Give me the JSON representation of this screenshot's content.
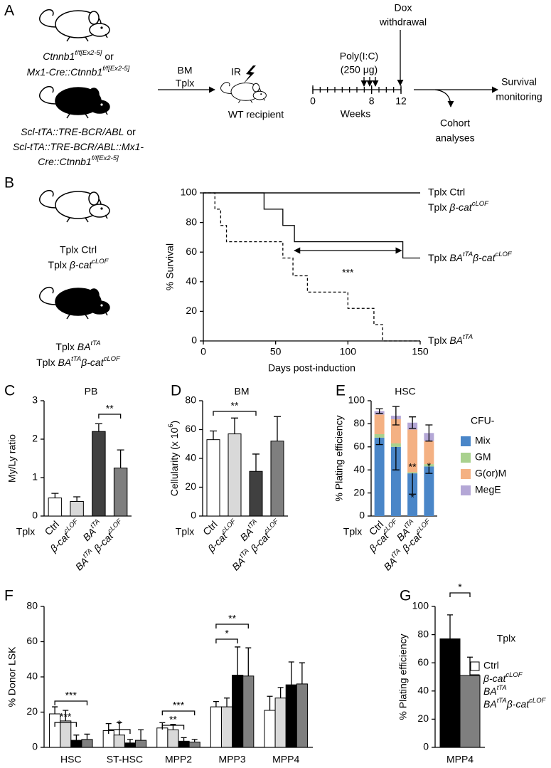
{
  "panel_a": {
    "label": "A",
    "donor_texts": [
      [
        {
          "t": "Ctnnb1",
          "it": true
        },
        {
          "t": "f/f[Ex2-5]",
          "it": true,
          "sup": true
        },
        {
          "t": " or"
        }
      ],
      [
        {
          "t": "Mx1-Cre::Ctnnb1",
          "it": true
        },
        {
          "t": "f/f[Ex2-5]",
          "it": true,
          "sup": true
        }
      ],
      [
        {
          "t": "Scl-tTA::TRE-BCR/ABL",
          "it": true
        },
        {
          "t": " or"
        }
      ],
      [
        {
          "t": "Scl-tTA::TRE-BCR/ABL::Mx1-",
          "it": true
        }
      ],
      [
        {
          "t": "Cre::Ctnnb1",
          "it": true
        },
        {
          "t": "f/f[Ex2-5]",
          "it": true,
          "sup": true
        }
      ]
    ],
    "transplant": [
      "BM",
      "Tplx"
    ],
    "irradiation": "IR",
    "recipient": "WT recipient",
    "dox": [
      "Dox",
      "withdrawal"
    ],
    "treatment": [
      "Poly(I:C)",
      "(250 μg)"
    ],
    "timeline_xlim": [
      0,
      12
    ],
    "timeline_ticks": [
      0,
      8,
      12
    ],
    "timeline_label": "Weeks",
    "outcome": [
      "Survival",
      "monitoring"
    ],
    "analyses": [
      "Cohort",
      "analyses"
    ]
  },
  "chart_data": [
    {
      "type": "line",
      "drawstyle": "steps-post",
      "label": "B",
      "ylabel": "% Survival",
      "xlabel": "Days post-induction",
      "xlim": [
        0,
        150
      ],
      "xticks": [
        0,
        50,
        100,
        150
      ],
      "ylim": [
        0,
        100
      ],
      "yticks": [
        0,
        20,
        40,
        60,
        80,
        100
      ],
      "annotation": "***",
      "mouse_labels": [
        "Tplx Ctrl",
        [
          {
            "t": "Tplx "
          },
          {
            "t": "β-cat",
            "it": true
          },
          {
            "t": "cLOF",
            "it": true,
            "sup": true
          }
        ],
        [
          {
            "t": "Tplx "
          },
          {
            "t": "BA",
            "it": true
          },
          {
            "t": "tTA",
            "it": true,
            "sup": true
          }
        ],
        [
          {
            "t": "Tplx "
          },
          {
            "t": "BA",
            "it": true
          },
          {
            "t": "tTA",
            "it": true,
            "sup": true
          },
          {
            "t": "β-cat",
            "it": true
          },
          {
            "t": "cLOF",
            "it": true,
            "sup": true
          }
        ]
      ],
      "series": [
        {
          "name": "Tplx Ctrl",
          "color": "#999999",
          "linestyle": "solid",
          "x": [
            0,
            150
          ],
          "values": [
            100,
            100
          ]
        },
        {
          "name": [
            {
              "t": "Tplx "
            },
            {
              "t": "β-cat",
              "it": true
            },
            {
              "t": "cLOF",
              "it": true,
              "sup": true
            }
          ],
          "color": "#999999",
          "linestyle": "solid",
          "x": [
            0,
            150
          ],
          "values": [
            100,
            100
          ]
        },
        {
          "name": [
            {
              "t": "Tplx "
            },
            {
              "t": "BA",
              "it": true
            },
            {
              "t": "tTA",
              "it": true,
              "sup": true
            },
            {
              "t": "β-cat",
              "it": true
            },
            {
              "t": "cLOF",
              "it": true,
              "sup": true
            }
          ],
          "color": "#000000",
          "linestyle": "solid",
          "x": [
            0,
            42,
            55,
            63,
            138,
            150
          ],
          "values": [
            100,
            89,
            78,
            67,
            56,
            56
          ]
        },
        {
          "name": [
            {
              "t": "Tplx "
            },
            {
              "t": "BA",
              "it": true
            },
            {
              "t": "tTA",
              "it": true,
              "sup": true
            }
          ],
          "color": "#000000",
          "linestyle": "dashed",
          "x": [
            0,
            8,
            12,
            16,
            55,
            62,
            72,
            100,
            118,
            124,
            150
          ],
          "values": [
            100,
            89,
            78,
            67,
            56,
            44,
            33,
            22,
            11,
            0,
            0
          ]
        }
      ]
    },
    {
      "type": "bar",
      "label": "C",
      "title": "PB",
      "ylabel": "My/Ly ratio",
      "group_label": "Tplx",
      "categories": [
        "Ctrl",
        [
          {
            "t": "β-cat",
            "it": true
          },
          {
            "t": "cLOF",
            "it": true,
            "sup": true
          }
        ],
        [
          {
            "t": "BA",
            "it": true
          },
          {
            "t": "tTA",
            "it": true,
            "sup": true
          }
        ],
        [
          {
            "t": "BA",
            "it": true
          },
          {
            "t": "tTA",
            "it": true,
            "sup": true
          },
          {
            "t": " β-cat",
            "it": true
          },
          {
            "t": "cLOF",
            "it": true,
            "sup": true
          }
        ]
      ],
      "values": [
        0.47,
        0.38,
        2.2,
        1.25
      ],
      "errors": [
        0.12,
        0.12,
        0.2,
        0.47
      ],
      "colors": [
        "#ffffff",
        "#d9d9d9",
        "#404040",
        "#7f7f7f"
      ],
      "ylim": [
        0,
        3
      ],
      "yticks": [
        0,
        1,
        2,
        3
      ],
      "annotation": "**"
    },
    {
      "type": "bar",
      "label": "D",
      "title": "BM",
      "ylabel": [
        {
          "t": "Cellularity (x 10"
        },
        {
          "t": "6",
          "sup": true
        },
        {
          "t": ")"
        }
      ],
      "group_label": "Tplx",
      "categories": [
        "Ctrl",
        [
          {
            "t": "β-cat",
            "it": true
          },
          {
            "t": "cLOF",
            "it": true,
            "sup": true
          }
        ],
        [
          {
            "t": "BA",
            "it": true
          },
          {
            "t": "tTA",
            "it": true,
            "sup": true
          }
        ],
        [
          {
            "t": "BA",
            "it": true
          },
          {
            "t": "tTA",
            "it": true,
            "sup": true
          },
          {
            "t": " β-cat",
            "it": true
          },
          {
            "t": "cLOF",
            "it": true,
            "sup": true
          }
        ]
      ],
      "values": [
        53,
        57,
        31,
        52
      ],
      "errors": [
        6,
        11,
        12,
        17
      ],
      "colors": [
        "#ffffff",
        "#d9d9d9",
        "#404040",
        "#7f7f7f"
      ],
      "ylim": [
        0,
        80
      ],
      "yticks": [
        0,
        20,
        40,
        60,
        80
      ],
      "annotation": "**"
    },
    {
      "type": "bar",
      "stacked": true,
      "label": "E",
      "title": "HSC",
      "ylabel": "% Plating efficiency",
      "group_label": "Tplx",
      "legend_title": "CFU-",
      "categories": [
        "Ctrl",
        [
          {
            "t": "β-cat",
            "it": true
          },
          {
            "t": "cLOF",
            "it": true,
            "sup": true
          }
        ],
        [
          {
            "t": "BA",
            "it": true
          },
          {
            "t": "tTA",
            "it": true,
            "sup": true
          }
        ],
        [
          {
            "t": "BA",
            "it": true
          },
          {
            "t": "tTA",
            "it": true,
            "sup": true
          },
          {
            "t": " β-cat",
            "it": true
          },
          {
            "t": "cLOF",
            "it": true,
            "sup": true
          }
        ]
      ],
      "series": [
        {
          "name": "Mix",
          "color": "#4a86c8",
          "values": [
            68,
            60,
            37,
            43
          ],
          "errors": [
            6,
            20,
            18,
            6
          ]
        },
        {
          "name": "GM",
          "color": "#a9d18e",
          "values": [
            3,
            3,
            1,
            2
          ]
        },
        {
          "name": "G(or)M",
          "color": "#f4b183",
          "values": [
            17,
            21,
            37,
            20
          ]
        },
        {
          "name": "MegE",
          "color": "#b4a7d6",
          "values": [
            3,
            3,
            6,
            7
          ],
          "errors": [
            2,
            8,
            5,
            7
          ]
        }
      ],
      "ylim": [
        0,
        100
      ],
      "yticks": [
        0,
        20,
        40,
        60,
        80,
        100
      ],
      "annotations": [
        "**",
        "*",
        "*"
      ]
    },
    {
      "type": "bar",
      "label": "F",
      "ylabel": "% Donor LSK",
      "legend_title": "Tplx",
      "categories": [
        "HSC",
        "ST-HSC",
        "MPP2",
        "MPP3",
        "MPP4"
      ],
      "category_colors": [
        "#000000",
        "#000000",
        "#000000",
        "#e8221e",
        "#1f3fc8"
      ],
      "series": [
        {
          "name": "Ctrl",
          "color": "#ffffff",
          "values": [
            19,
            9.5,
            11,
            23,
            21
          ],
          "errors": [
            4,
            4,
            3,
            3,
            8
          ]
        },
        {
          "name": [
            {
              "t": "β-cat",
              "it": true
            },
            {
              "t": "cLOF",
              "it": true,
              "sup": true
            }
          ],
          "color": "#d9d9d9",
          "values": [
            15,
            7,
            10,
            23,
            28
          ],
          "errors": [
            6,
            7,
            3,
            5,
            6
          ]
        },
        {
          "name": [
            {
              "t": "BA",
              "it": true
            },
            {
              "t": "tTA",
              "it": true,
              "sup": true
            }
          ],
          "color": "#000000",
          "values": [
            4,
            2.5,
            3.5,
            41,
            35.5
          ],
          "errors": [
            3,
            2,
            2,
            16,
            13
          ]
        },
        {
          "name": [
            {
              "t": "BA",
              "it": true
            },
            {
              "t": "tTA",
              "it": true,
              "sup": true
            },
            {
              "t": "β-cat",
              "it": true
            },
            {
              "t": "cLOF",
              "it": true,
              "sup": true
            }
          ],
          "color": "#7f7f7f",
          "values": [
            4.5,
            4,
            3,
            40.5,
            36
          ],
          "errors": [
            3,
            6,
            1.5,
            16,
            12
          ]
        }
      ],
      "ylim": [
        0,
        80
      ],
      "yticks": [
        0,
        20,
        40,
        60,
        80
      ],
      "annotations": [
        "***",
        "***",
        "*",
        "***",
        "**",
        "**",
        "*"
      ]
    },
    {
      "type": "bar",
      "label": "G",
      "ylabel": "% Plating efficiency",
      "categories": [
        "MPP4"
      ],
      "category_colors": [
        "#1f3fc8"
      ],
      "series": [
        {
          "color": "#000000",
          "values": [
            77
          ],
          "errors": [
            17
          ]
        },
        {
          "color": "#7f7f7f",
          "values": [
            51
          ],
          "errors": [
            13
          ]
        }
      ],
      "ylim": [
        0,
        100
      ],
      "yticks": [
        0,
        20,
        40,
        60,
        80,
        100
      ],
      "annotation": "*"
    }
  ]
}
